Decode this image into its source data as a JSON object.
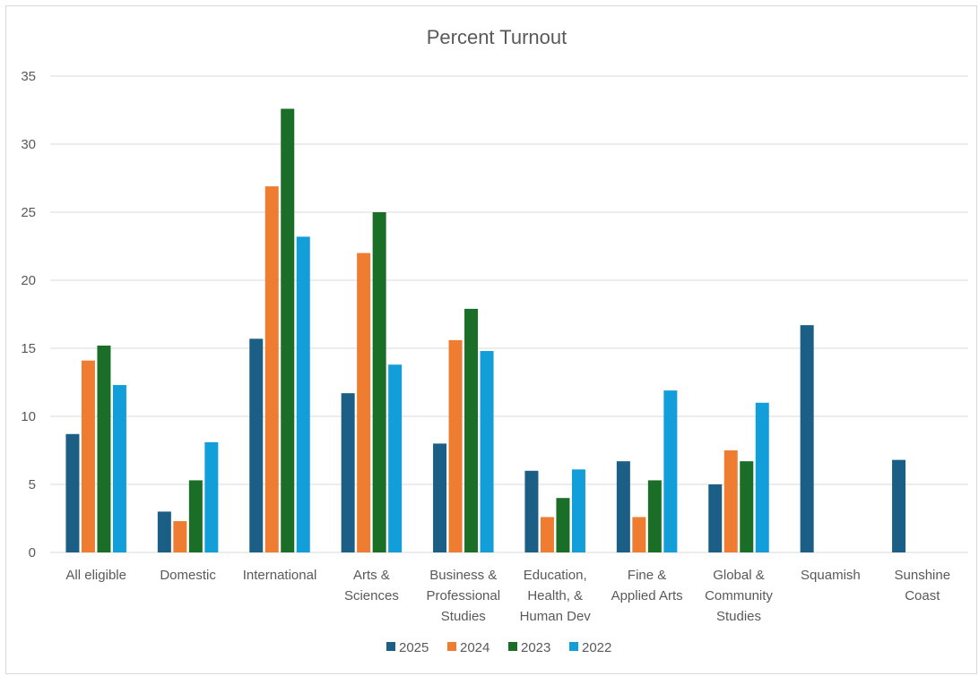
{
  "chart_data": {
    "type": "bar",
    "title": "Percent Turnout",
    "xlabel": "",
    "ylabel": "",
    "ylim": [
      0,
      35
    ],
    "yticks": [
      0,
      5,
      10,
      15,
      20,
      25,
      30,
      35
    ],
    "grid": true,
    "legend_position": "bottom",
    "categories": [
      [
        "All eligible"
      ],
      [
        "Domestic"
      ],
      [
        "International"
      ],
      [
        "Arts &",
        "Sciences"
      ],
      [
        "Business &",
        "Professional",
        "Studies"
      ],
      [
        "Education,",
        "Health, &",
        "Human Dev"
      ],
      [
        "Fine &",
        "Applied Arts"
      ],
      [
        "Global &",
        "Community",
        "Studies"
      ],
      [
        "Squamish"
      ],
      [
        "Sunshine",
        "Coast"
      ]
    ],
    "series": [
      {
        "name": "2025",
        "color": "#1b5e86",
        "values": [
          8.7,
          3.0,
          15.7,
          11.7,
          8.0,
          6.0,
          6.7,
          5.0,
          16.7,
          6.8
        ]
      },
      {
        "name": "2024",
        "color": "#ee7d31",
        "values": [
          14.1,
          2.3,
          26.9,
          22.0,
          15.6,
          2.6,
          2.6,
          7.5,
          null,
          null
        ]
      },
      {
        "name": "2023",
        "color": "#1b6e27",
        "values": [
          15.2,
          5.3,
          32.6,
          25.0,
          17.9,
          4.0,
          5.3,
          6.7,
          null,
          null
        ]
      },
      {
        "name": "2022",
        "color": "#129fd9",
        "values": [
          12.3,
          8.1,
          23.2,
          13.8,
          14.8,
          6.1,
          11.9,
          11.0,
          null,
          null
        ]
      }
    ]
  }
}
